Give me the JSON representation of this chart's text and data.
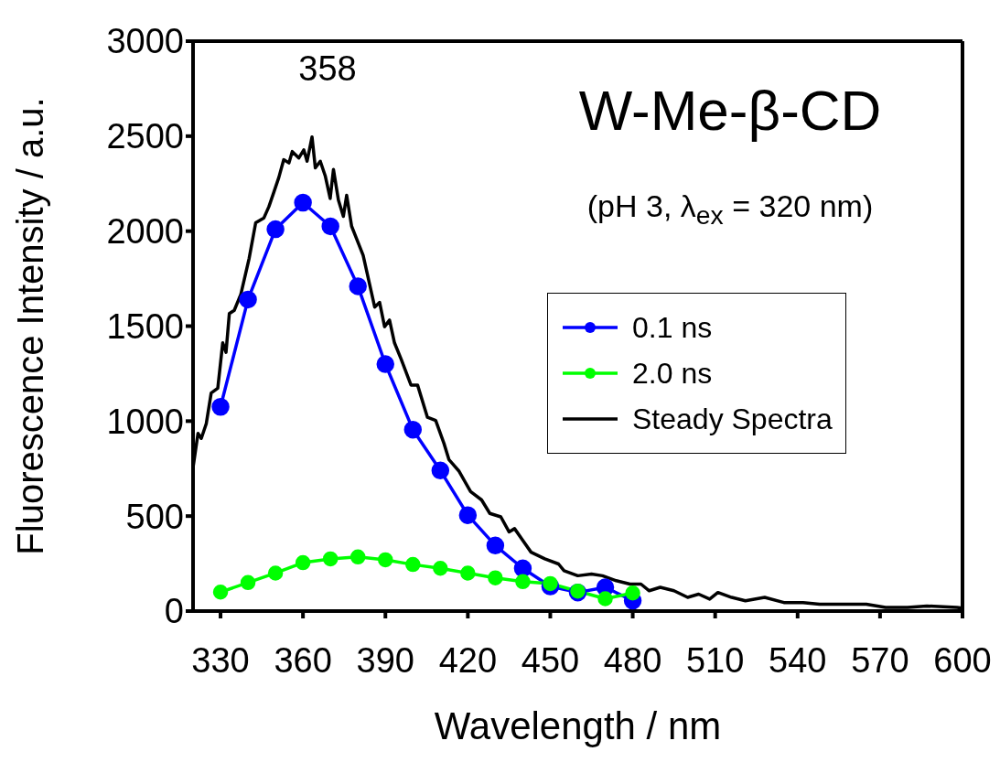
{
  "chart_data": {
    "type": "line",
    "title": "W-Me-β-CD",
    "subtitle": "(pH 3, λ$_{ex}$ = 320 nm)",
    "xlabel": "Wavelength / nm",
    "ylabel": "Fluorescence Intensity / a.u.",
    "annotations": [
      "358"
    ],
    "xlim": [
      320,
      600
    ],
    "xticks": [
      330,
      360,
      390,
      420,
      450,
      480,
      510,
      540,
      570,
      600
    ],
    "ylim": [
      0,
      3000
    ],
    "yticks": [
      0,
      500,
      1000,
      1500,
      2000,
      2500,
      3000
    ],
    "grid": false,
    "legend": "right",
    "marker": "circle",
    "line_style": "solid",
    "series": [
      {
        "name": "0.1 ns",
        "color": "#0000ff",
        "x": [
          330,
          340,
          350,
          360,
          370,
          380,
          390,
          400,
          410,
          420,
          430,
          440,
          450,
          460,
          470,
          480
        ],
        "values": [
          1075,
          1640,
          2010,
          2150,
          2025,
          1710,
          1300,
          955,
          740,
          505,
          345,
          225,
          130,
          98,
          125,
          55
        ]
      },
      {
        "name": "2.0 ns",
        "color": "#00ff00",
        "x": [
          330,
          340,
          350,
          360,
          370,
          380,
          390,
          400,
          410,
          420,
          430,
          440,
          450,
          460,
          470,
          480
        ],
        "values": [
          100,
          150,
          200,
          255,
          275,
          285,
          270,
          245,
          225,
          200,
          175,
          155,
          145,
          105,
          65,
          95
        ]
      },
      {
        "name": "Steady Spectra",
        "color": "#000000",
        "marker": "none",
        "x": [
          320,
          321.8,
          323,
          324.8,
          326.6,
          329,
          330.8,
          332,
          333.2,
          335,
          337.4,
          340.4,
          342.8,
          345.8,
          347.6,
          349.4,
          351.2,
          353,
          354.9,
          356.1,
          358.5,
          360.3,
          361.5,
          363.3,
          364.5,
          366.3,
          368.1,
          369.9,
          371.1,
          372.9,
          374.7,
          375.9,
          377.7,
          381.9,
          386.1,
          387.9,
          389.7,
          391.5,
          393.3,
          395.7,
          399.3,
          401.7,
          405.3,
          408.3,
          411.3,
          413.1,
          416.7,
          421,
          425,
          428,
          432,
          435,
          437,
          440,
          443,
          448,
          453,
          455,
          460,
          465,
          469,
          474,
          479,
          483,
          486,
          490,
          495,
          500,
          504,
          508,
          511,
          516,
          521,
          528,
          535,
          542,
          548,
          556,
          565,
          572,
          580,
          587,
          598,
          600
        ],
        "values": [
          755,
          935,
          909,
          986,
          1148,
          1173,
          1412,
          1362,
          1566,
          1583,
          1668,
          1856,
          2044,
          2070,
          2129,
          2205,
          2282,
          2376,
          2359,
          2419,
          2385,
          2428,
          2368,
          2496,
          2333,
          2368,
          2291,
          2172,
          2325,
          2163,
          2078,
          2189,
          2026,
          1873,
          1600,
          1625,
          1497,
          1532,
          1412,
          1327,
          1190,
          1190,
          1020,
          1003,
          883,
          798,
          738,
          629,
          585,
          514,
          496,
          417,
          434,
          372,
          310,
          275,
          248,
          213,
          186,
          195,
          186,
          160,
          142,
          142,
          107,
          125,
          107,
          72,
          89,
          63,
          98,
          72,
          54,
          72,
          45,
          45,
          36,
          36,
          36,
          19,
          19,
          27,
          19,
          15
        ]
      }
    ]
  }
}
